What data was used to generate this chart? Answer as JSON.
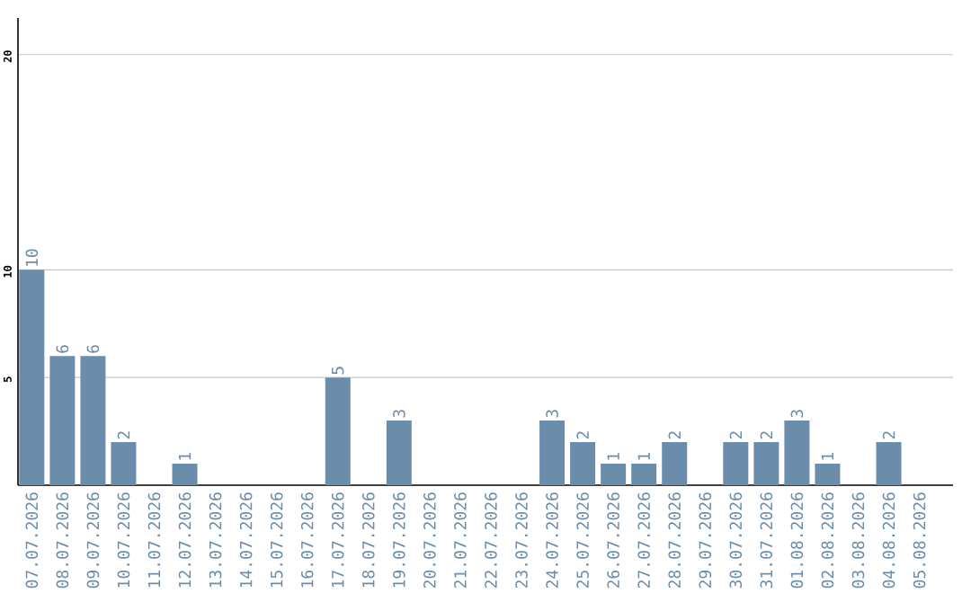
{
  "chart_data": {
    "type": "bar",
    "categories": [
      "07.07.2026",
      "08.07.2026",
      "09.07.2026",
      "10.07.2026",
      "11.07.2026",
      "12.07.2026",
      "13.07.2026",
      "14.07.2026",
      "15.07.2026",
      "16.07.2026",
      "17.07.2026",
      "18.07.2026",
      "19.07.2026",
      "20.07.2026",
      "21.07.2026",
      "22.07.2026",
      "23.07.2026",
      "24.07.2026",
      "25.07.2026",
      "26.07.2026",
      "27.07.2026",
      "28.07.2026",
      "29.07.2026",
      "30.07.2026",
      "31.07.2026",
      "01.08.2026",
      "02.08.2026",
      "03.08.2026",
      "04.08.2026",
      "05.08.2026"
    ],
    "values": [
      10,
      6,
      6,
      2,
      0,
      1,
      0,
      0,
      0,
      0,
      5,
      0,
      3,
      0,
      0,
      0,
      0,
      3,
      2,
      1,
      1,
      2,
      0,
      2,
      2,
      3,
      1,
      0,
      2,
      0
    ],
    "value_labels": [
      "10",
      "6",
      "6",
      "2",
      null,
      "1",
      null,
      null,
      null,
      null,
      "5",
      null,
      "3",
      null,
      null,
      null,
      null,
      "3",
      "2",
      "1",
      "1",
      "2",
      null,
      "2",
      "2",
      "3",
      "1",
      null,
      "2",
      null
    ],
    "color": "#6b8cab",
    "ylim": [
      0,
      21.7
    ],
    "yticks": [
      5,
      10,
      20
    ],
    "grid": "y"
  }
}
